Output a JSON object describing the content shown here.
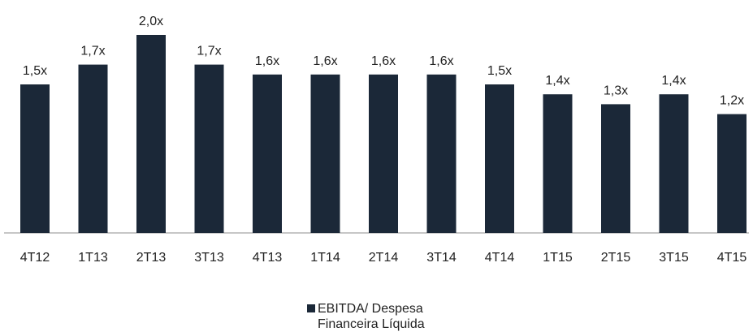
{
  "chart_data": {
    "type": "bar",
    "categories": [
      "4T12",
      "1T13",
      "2T13",
      "3T13",
      "4T13",
      "1T14",
      "2T14",
      "3T14",
      "4T14",
      "1T15",
      "2T15",
      "3T15",
      "4T15"
    ],
    "series": [
      {
        "name": "EBITDA/ Despesa Financeira Líquida",
        "values": [
          1.5,
          1.7,
          2.0,
          1.7,
          1.6,
          1.6,
          1.6,
          1.6,
          1.5,
          1.4,
          1.3,
          1.4,
          1.2
        ],
        "labels": [
          "1,5x",
          "1,7x",
          "2,0x",
          "1,7x",
          "1,6x",
          "1,6x",
          "1,6x",
          "1,6x",
          "1,5x",
          "1,4x",
          "1,3x",
          "1,4x",
          "1,2x"
        ]
      }
    ],
    "ylim": [
      0,
      2.0
    ],
    "grid": false,
    "legend_position": "bottom-center",
    "bar_color": "#1b2838"
  }
}
